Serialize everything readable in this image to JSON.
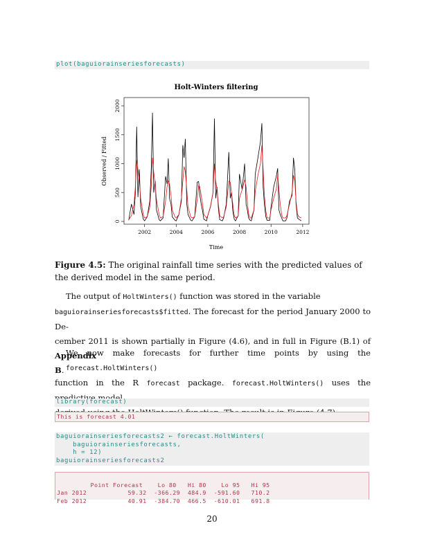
{
  "code1": "plot(baguiorainseriesforecasts)",
  "chart_data": {
    "type": "line",
    "title": "Holt-Winters filtering",
    "xlabel": "Time",
    "ylabel": "Observed / Fitted",
    "xlim": [
      2000.7,
      2012.4
    ],
    "ylim": [
      0,
      2000
    ],
    "xticks": [
      "2002",
      "2004",
      "2006",
      "2008",
      "2010",
      "2012"
    ],
    "yticks": [
      "0",
      "500",
      "1000",
      "1500",
      "2000"
    ],
    "series": [
      {
        "color": "#000000",
        "x": [
          2001.0,
          2001.17,
          2001.33,
          2001.42,
          2001.5,
          2001.58,
          2001.67,
          2001.75,
          2001.92,
          2002.0,
          2002.17,
          2002.33,
          2002.42,
          2002.5,
          2002.58,
          2002.67,
          2002.75,
          2002.92,
          2003.0,
          2003.17,
          2003.33,
          2003.42,
          2003.5,
          2003.58,
          2003.67,
          2003.75,
          2003.92,
          2004.0,
          2004.17,
          2004.33,
          2004.42,
          2004.5,
          2004.58,
          2004.67,
          2004.75,
          2004.92,
          2005.0,
          2005.17,
          2005.33,
          2005.42,
          2005.5,
          2005.58,
          2005.67,
          2005.75,
          2005.92,
          2006.0,
          2006.17,
          2006.33,
          2006.42,
          2006.5,
          2006.58,
          2006.67,
          2006.75,
          2006.92,
          2007.0,
          2007.17,
          2007.33,
          2007.42,
          2007.5,
          2007.58,
          2007.67,
          2007.75,
          2007.92,
          2008.0,
          2008.17,
          2008.33,
          2008.42,
          2008.5,
          2008.58,
          2008.67,
          2008.75,
          2008.92,
          2009.0,
          2009.17,
          2009.33,
          2009.42,
          2009.5,
          2009.58,
          2009.67,
          2009.75,
          2009.92,
          2010.0,
          2010.17,
          2010.33,
          2010.42,
          2010.5,
          2010.58,
          2010.67,
          2010.75,
          2010.92,
          2011.0,
          2011.17,
          2011.33,
          2011.42,
          2011.5,
          2011.58,
          2011.67,
          2011.75,
          2011.92
        ],
        "values": [
          20,
          300,
          120,
          500,
          1640,
          420,
          900,
          260,
          40,
          10,
          80,
          350,
          900,
          1880,
          500,
          700,
          200,
          30,
          10,
          60,
          780,
          650,
          1090,
          400,
          300,
          80,
          20,
          10,
          120,
          350,
          1320,
          1100,
          1430,
          300,
          120,
          20,
          10,
          80,
          680,
          690,
          450,
          300,
          180,
          40,
          10,
          100,
          260,
          500,
          1780,
          400,
          600,
          230,
          30,
          10,
          60,
          300,
          1200,
          400,
          500,
          180,
          40,
          10,
          100,
          820,
          550,
          1000,
          300,
          200,
          60,
          20,
          10,
          200,
          820,
          1100,
          1380,
          1700,
          600,
          300,
          80,
          20,
          20,
          250,
          600,
          780,
          920,
          200,
          120,
          60,
          10,
          10,
          60,
          350,
          450,
          1100,
          900,
          300,
          60,
          40,
          10
        ]
      },
      {
        "color": "#e41a1c",
        "x": [
          2001.0,
          2001.17,
          2001.33,
          2001.42,
          2001.5,
          2001.58,
          2001.67,
          2001.75,
          2001.92,
          2002.0,
          2002.17,
          2002.33,
          2002.42,
          2002.5,
          2002.58,
          2002.67,
          2002.75,
          2002.92,
          2003.0,
          2003.17,
          2003.33,
          2003.42,
          2003.5,
          2003.58,
          2003.67,
          2003.75,
          2003.92,
          2004.0,
          2004.17,
          2004.33,
          2004.42,
          2004.5,
          2004.58,
          2004.67,
          2004.75,
          2004.92,
          2005.0,
          2005.17,
          2005.33,
          2005.42,
          2005.5,
          2005.58,
          2005.67,
          2005.75,
          2005.92,
          2006.0,
          2006.17,
          2006.33,
          2006.42,
          2006.5,
          2006.58,
          2006.67,
          2006.75,
          2006.92,
          2007.0,
          2007.17,
          2007.33,
          2007.42,
          2007.5,
          2007.58,
          2007.67,
          2007.75,
          2007.92,
          2008.0,
          2008.17,
          2008.33,
          2008.42,
          2008.5,
          2008.58,
          2008.67,
          2008.75,
          2008.92,
          2009.0,
          2009.17,
          2009.33,
          2009.42,
          2009.5,
          2009.58,
          2009.67,
          2009.75,
          2009.92,
          2010.0,
          2010.17,
          2010.33,
          2010.42,
          2010.5,
          2010.58,
          2010.67,
          2010.75,
          2010.92,
          2011.0,
          2011.17,
          2011.33,
          2011.42,
          2011.5,
          2011.58,
          2011.67,
          2011.75,
          2011.92
        ],
        "values": [
          30,
          100,
          300,
          600,
          1060,
          900,
          700,
          400,
          120,
          60,
          80,
          250,
          600,
          1100,
          850,
          650,
          380,
          120,
          60,
          80,
          350,
          600,
          700,
          650,
          450,
          200,
          80,
          60,
          120,
          400,
          700,
          950,
          870,
          550,
          250,
          80,
          60,
          80,
          380,
          620,
          600,
          450,
          300,
          120,
          60,
          100,
          250,
          500,
          1000,
          700,
          550,
          300,
          100,
          60,
          80,
          250,
          700,
          680,
          500,
          300,
          100,
          60,
          90,
          400,
          550,
          720,
          600,
          350,
          130,
          60,
          60,
          200,
          520,
          800,
          1000,
          1320,
          900,
          450,
          180,
          60,
          60,
          200,
          400,
          560,
          800,
          550,
          300,
          120,
          60,
          60,
          100,
          300,
          500,
          800,
          700,
          350,
          130,
          80,
          60
        ]
      }
    ]
  },
  "caption": {
    "label": "Figure 4.5:",
    "text": "The original rainfall time series with the predicted values of the derived model in the same period."
  },
  "para1": {
    "t1": "The output of ",
    "c1": "HoltWinters()",
    "t2": " function was stored in the variable",
    "c2": "baguiorainseriesforecasts$fitted",
    "t3": ". The forecast for the period January 2000 to De-",
    "t4": "cember 2011 is shown partially in Figure (4.6), and in full in Figure (B.1) of ",
    "b1": "Appendix",
    "b2": "B",
    "t5": "."
  },
  "para2": {
    "t1": "We now make forecasts for further time points by using the ",
    "c1": "forecast.HoltWinters()",
    "t2": "function in the R ",
    "c2": "forecast",
    "t3": " package. ",
    "c3": "forecast.HoltWinters()",
    "t4": " uses the predictive model",
    "t5": "derived using the HoltWinters() function. The result is in Figure (4.7)."
  },
  "code2": "library(forecast)",
  "out1": "This is forecast 4.01",
  "code3": "baguiorainseriesforecasts2 ← forecast.HoltWinters(\n    baguiorainseriesforecasts,\n    h = 12)\nbaguiorainseriesforecasts2",
  "forecast_table": {
    "header": "         Point Forecast    Lo 80   Hi 80    Lo 95   Hi 95",
    "rows": [
      "Jan 2012           59.32  -366.29  484.9  -591.60   710.2",
      "Feb 2012           40.91  -384.70  466.5  -610.01   691.8"
    ]
  },
  "page_number": "20"
}
